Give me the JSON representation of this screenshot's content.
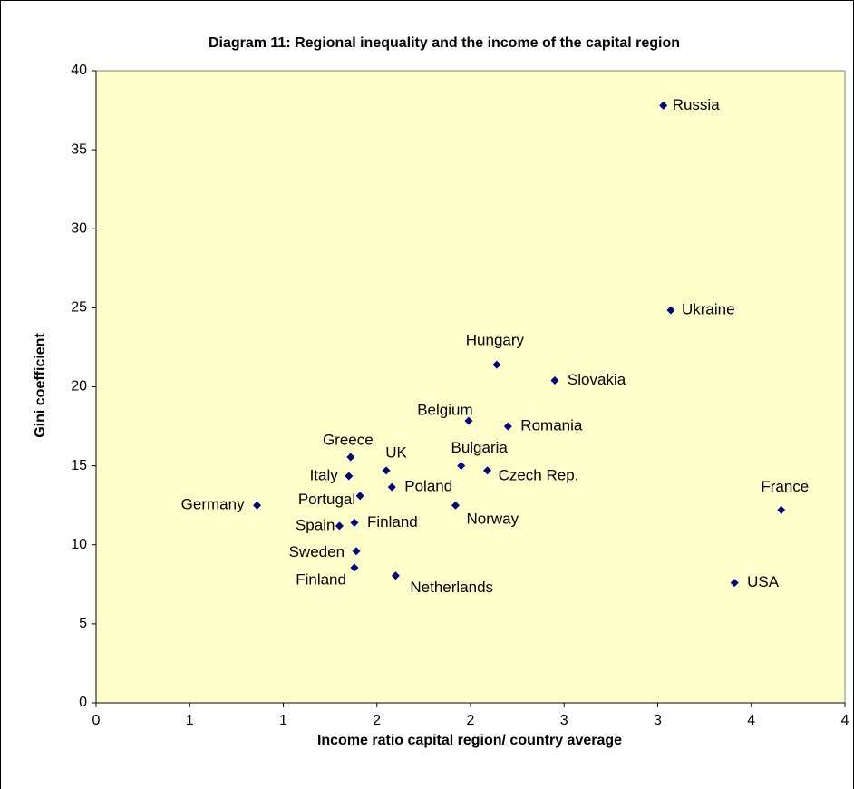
{
  "chart_data": {
    "type": "scatter",
    "title": "Diagram 11: Regional inequality and the income of the capital region",
    "x_label": "Income ratio capital region/ country average",
    "y_label": "Gini coefficient",
    "color": "#000080",
    "xlim": [
      0,
      4
    ],
    "xticks": [
      0,
      {
        "value": 0.5,
        "label": "1"
      },
      1,
      {
        "value": 1.5,
        "label": "2"
      },
      2,
      {
        "value": 2.5,
        "label": "3"
      },
      3,
      {
        "value": 3.5,
        "label": "4"
      },
      4
    ],
    "ylim": [
      0,
      40
    ],
    "yticks": [
      0,
      5,
      10,
      15,
      20,
      25,
      30,
      35,
      40
    ],
    "grid": false,
    "points": [
      {
        "label": "Russia",
        "x": 3.03,
        "y": 37.8
      },
      {
        "label": "Ukraine",
        "x": 3.07,
        "y": 24.85
      },
      {
        "label": "Hungary",
        "x": 2.14,
        "y": 21.4
      },
      {
        "label": "Slovakia",
        "x": 2.45,
        "y": 20.4
      },
      {
        "label": "Belgium",
        "x": 1.99,
        "y": 17.85
      },
      {
        "label": "Romania",
        "x": 2.2,
        "y": 17.5
      },
      {
        "label": "Greece",
        "x": 1.36,
        "y": 15.55
      },
      {
        "label": "UK",
        "x": 1.55,
        "y": 14.7
      },
      {
        "label": "Italy",
        "x": 1.35,
        "y": 14.35
      },
      {
        "label": "Bulgaria",
        "x": 1.95,
        "y": 15.0
      },
      {
        "label": "Czech Rep.",
        "x": 2.09,
        "y": 14.7
      },
      {
        "label": "Poland",
        "x": 1.58,
        "y": 13.65
      },
      {
        "label": "Portugal",
        "x": 1.41,
        "y": 13.1
      },
      {
        "label": "Germany",
        "x": 0.86,
        "y": 12.5
      },
      {
        "label": "Norway",
        "x": 1.92,
        "y": 12.5
      },
      {
        "label": "France",
        "x": 3.66,
        "y": 12.2
      },
      {
        "label": "Spain",
        "x": 1.3,
        "y": 11.2
      },
      {
        "label": "Finland",
        "x": 1.38,
        "y": 11.4
      },
      {
        "label": "Sweden",
        "x": 1.39,
        "y": 9.6
      },
      {
        "label": "Finland",
        "x": 1.38,
        "y": 8.55
      },
      {
        "label": "Netherlands",
        "x": 1.6,
        "y": 8.05
      },
      {
        "label": "USA",
        "x": 3.41,
        "y": 7.6
      }
    ]
  }
}
